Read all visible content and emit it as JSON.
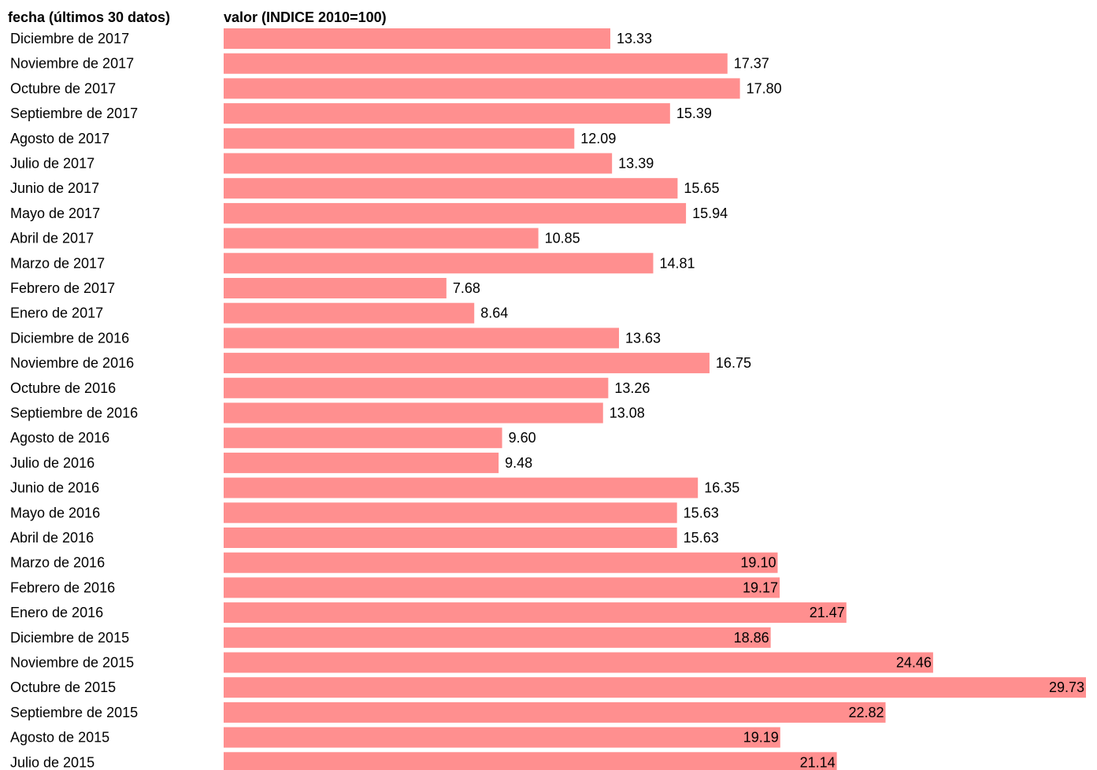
{
  "chart_data": {
    "type": "bar",
    "orientation": "horizontal",
    "category_header": "fecha (últimos 30 datos)",
    "value_header": "valor (INDICE 2010=100)",
    "bar_color": "#ff8f8f",
    "categories": [
      "Diciembre de 2017",
      "Noviembre de 2017",
      "Octubre de 2017",
      "Septiembre de 2017",
      "Agosto de 2017",
      "Julio de 2017",
      "Junio de 2017",
      "Mayo de 2017",
      "Abril de 2017",
      "Marzo de 2017",
      "Febrero de 2017",
      "Enero de 2017",
      "Diciembre de 2016",
      "Noviembre de 2016",
      "Octubre de 2016",
      "Septiembre de 2016",
      "Agosto de 2016",
      "Julio de 2016",
      "Junio de 2016",
      "Mayo de 2016",
      "Abril de 2016",
      "Marzo de 2016",
      "Febrero de 2016",
      "Enero de 2016",
      "Diciembre de 2015",
      "Noviembre de 2015",
      "Octubre de 2015",
      "Septiembre de 2015",
      "Agosto de 2015",
      "Julio de 2015"
    ],
    "values": [
      13.33,
      17.37,
      17.8,
      15.39,
      12.09,
      13.39,
      15.65,
      15.94,
      10.85,
      14.81,
      7.68,
      8.64,
      13.63,
      16.75,
      13.26,
      13.08,
      9.6,
      9.48,
      16.35,
      15.63,
      15.63,
      19.1,
      19.17,
      21.47,
      18.86,
      24.46,
      29.73,
      22.82,
      19.19,
      21.14
    ],
    "value_labels": [
      "13.33",
      "17.37",
      "17.80",
      "15.39",
      "12.09",
      "13.39",
      "15.65",
      "15.94",
      "10.85",
      "14.81",
      "7.68",
      "8.64",
      "13.63",
      "16.75",
      "13.26",
      "13.08",
      "9.60",
      "9.48",
      "16.35",
      "15.63",
      "15.63",
      "19.10",
      "19.17",
      "21.47",
      "18.86",
      "24.46",
      "29.73",
      "22.82",
      "19.19",
      "21.14"
    ]
  }
}
